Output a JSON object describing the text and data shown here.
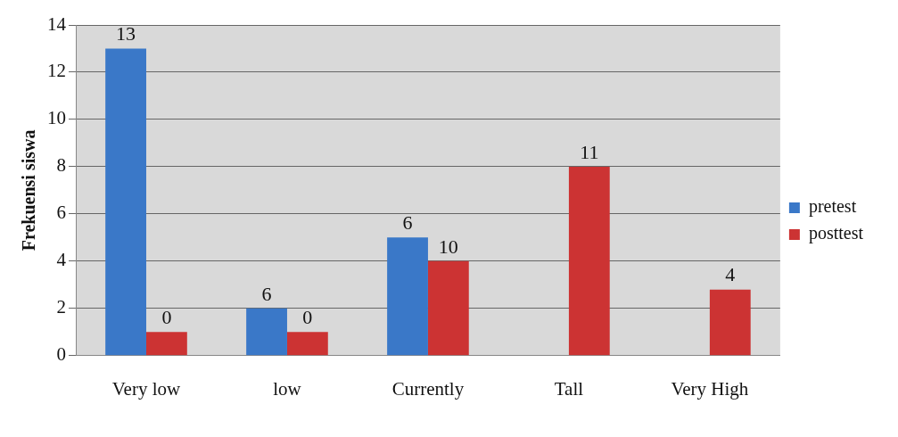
{
  "chart_data": {
    "type": "bar",
    "ylabel": "Frekuensi siswa",
    "categories": [
      "Very low",
      "low",
      "Currently",
      "Tall",
      "Very High"
    ],
    "series": [
      {
        "name": "pretest",
        "color": "#3a78c8",
        "values": [
          13,
          2,
          5,
          null,
          null
        ]
      },
      {
        "name": "posttest",
        "color": "#cc3333",
        "values": [
          1,
          1,
          4,
          8,
          2.8
        ]
      }
    ],
    "annotations": [
      {
        "text": "13",
        "x": "Very low",
        "y": 13
      },
      {
        "text": "0",
        "x": "Very low",
        "y": 1
      },
      {
        "text": "6",
        "x": "low",
        "y": 2
      },
      {
        "text": "0",
        "x": "low",
        "y": 1
      },
      {
        "text": "6",
        "x": "Currently",
        "y": 5
      },
      {
        "text": "10",
        "x": "Currently",
        "y": 4
      },
      {
        "text": "11",
        "x": "Tall",
        "y": 8
      },
      {
        "text": "4",
        "x": "Very High",
        "y": 2.8
      }
    ],
    "ylim": [
      0,
      14
    ],
    "yticks": [
      0,
      2,
      4,
      6,
      8,
      10,
      12,
      14
    ],
    "grid": "y",
    "legend": "right"
  }
}
